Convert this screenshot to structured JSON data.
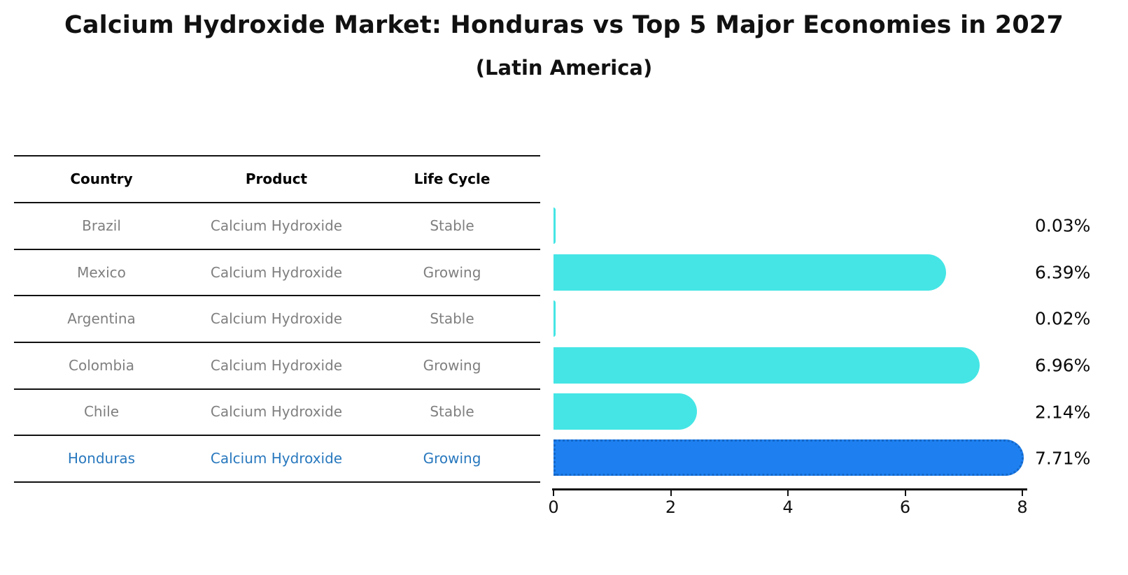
{
  "title": "Calcium Hydroxide Market: Honduras vs Top 5 Major Economies in 2027",
  "subtitle": "(Latin America)",
  "table": {
    "headers": [
      "Country",
      "Product",
      "Life Cycle"
    ],
    "rows": [
      {
        "country": "Brazil",
        "product": "Calcium Hydroxide",
        "life_cycle": "Stable"
      },
      {
        "country": "Mexico",
        "product": "Calcium Hydroxide",
        "life_cycle": "Growing"
      },
      {
        "country": "Argentina",
        "product": "Calcium Hydroxide",
        "life_cycle": "Stable"
      },
      {
        "country": "Colombia",
        "product": "Calcium Hydroxide",
        "life_cycle": "Growing"
      },
      {
        "country": "Chile",
        "product": "Calcium Hydroxide",
        "life_cycle": "Stable"
      },
      {
        "country": "Honduras",
        "product": "Calcium Hydroxide",
        "life_cycle": "Growing"
      }
    ]
  },
  "chart_data": {
    "type": "bar",
    "orientation": "horizontal",
    "title": "Calcium Hydroxide Market: Honduras vs Top 5 Major Economies in 2027",
    "subtitle": "(Latin America)",
    "categories": [
      "Brazil",
      "Mexico",
      "Argentina",
      "Colombia",
      "Chile",
      "Honduras"
    ],
    "values": [
      0.03,
      6.39,
      0.02,
      6.96,
      2.14,
      7.71
    ],
    "value_labels": [
      "0.03%",
      "6.39%",
      "0.02%",
      "6.96%",
      "2.14%",
      "7.71%"
    ],
    "unit": "%",
    "xlim": [
      0,
      8
    ],
    "x_ticks": [
      0,
      2,
      4,
      6,
      8
    ],
    "grid": false,
    "legend": false,
    "highlight_index": 5,
    "highlight_category": "Honduras",
    "colors": {
      "bar": "#45E5E5",
      "highlight_bar": "#1E80F0",
      "highlight_border": "#1467C8",
      "highlight_text": "#2878BE",
      "row_text": "#7F7F7F",
      "header_text": "#000000",
      "value_text": "#0A0A0A"
    }
  }
}
